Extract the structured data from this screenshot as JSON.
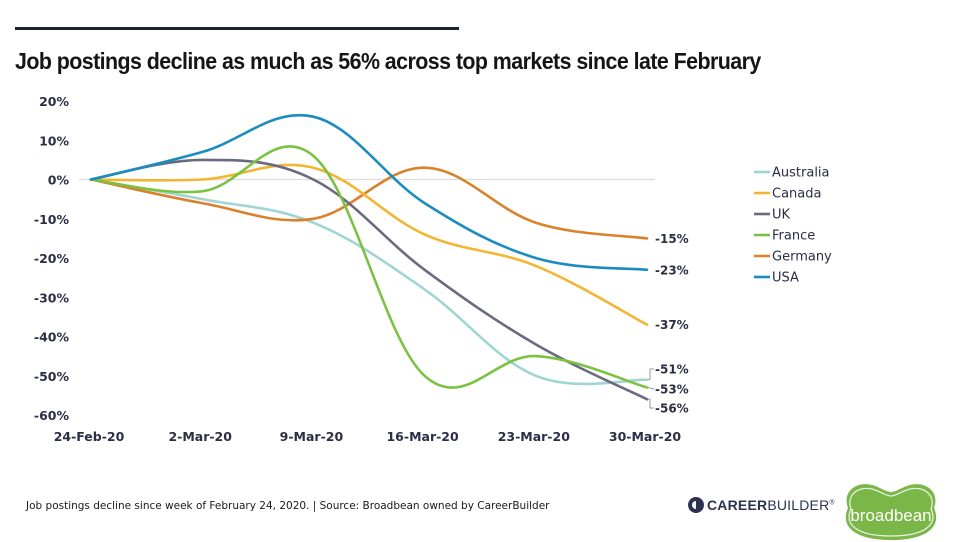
{
  "header": {
    "title": "Job postings decline as much as 56% across top markets since late February"
  },
  "footer": {
    "note": "Job postings decline since week of February 24, 2020.  |  Source: Broadbean owned by CareerBuilder"
  },
  "logos": {
    "careerbuilder_bold": "CAREER",
    "careerbuilder_light": "BUILDER",
    "careerbuilder_mark": "®",
    "broadbean": "broadbean",
    "broadbean_color": "#7ab648"
  },
  "chart_data": {
    "type": "line",
    "title": "Job postings decline as much as 56% across top markets since late February",
    "xlabel": "",
    "ylabel": "",
    "x": [
      "24-Feb-20",
      "2-Mar-20",
      "9-Mar-20",
      "16-Mar-20",
      "23-Mar-20",
      "30-Mar-20"
    ],
    "ylim": [
      -60,
      20
    ],
    "yticks": [
      20,
      10,
      0,
      -10,
      -20,
      -30,
      -40,
      -50,
      -60
    ],
    "ytick_labels": [
      "20%",
      "10%",
      "0%",
      "-10%",
      "-20%",
      "-30%",
      "-40%",
      "-50%",
      "-60%"
    ],
    "grid": false,
    "zero_line": true,
    "legend_position": "right",
    "series": [
      {
        "name": "Australia",
        "color": "#9fd6d4",
        "values": [
          0,
          -5,
          -11,
          -28,
          -50,
          -51
        ],
        "end_label": "-51%"
      },
      {
        "name": "Canada",
        "color": "#f2b632",
        "values": [
          0,
          0,
          3,
          -14,
          -22,
          -37
        ],
        "end_label": "-37%"
      },
      {
        "name": "UK",
        "color": "#6a6b80",
        "values": [
          0,
          5,
          0,
          -23,
          -42,
          -56
        ],
        "end_label": "-56%"
      },
      {
        "name": "France",
        "color": "#7cc242",
        "values": [
          0,
          -3,
          6,
          -50,
          -45,
          -53
        ],
        "end_label": "-53%"
      },
      {
        "name": "Germany",
        "color": "#d9822b",
        "values": [
          0,
          -6,
          -10,
          3,
          -11,
          -15
        ],
        "end_label": "-15%"
      },
      {
        "name": "USA",
        "color": "#1a8cbf",
        "values": [
          0,
          7,
          16,
          -6,
          -20,
          -23
        ],
        "end_label": "-23%"
      }
    ]
  }
}
